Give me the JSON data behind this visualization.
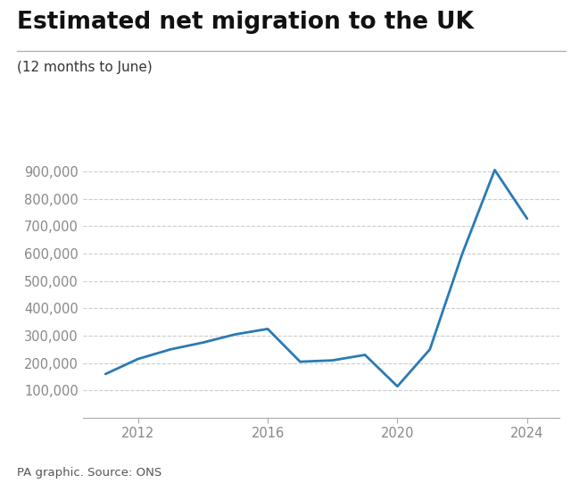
{
  "title": "Estimated net migration to the UK",
  "subtitle": "(12 months to June)",
  "source": "PA graphic. Source: ONS",
  "line_color": "#2a7ab5",
  "background_color": "#ffffff",
  "years": [
    2011,
    2012,
    2013,
    2014,
    2015,
    2016,
    2017,
    2018,
    2019,
    2020,
    2021,
    2022,
    2023,
    2024
  ],
  "values": [
    160000,
    215000,
    250000,
    275000,
    305000,
    325000,
    205000,
    210000,
    230000,
    115000,
    250000,
    600000,
    906000,
    728000
  ],
  "xlim": [
    2010.3,
    2025.0
  ],
  "ylim": [
    0,
    980000
  ],
  "yticks": [
    100000,
    200000,
    300000,
    400000,
    500000,
    600000,
    700000,
    800000,
    900000
  ],
  "xticks": [
    2012,
    2016,
    2020,
    2024
  ],
  "title_fontsize": 19,
  "subtitle_fontsize": 11,
  "tick_fontsize": 10.5,
  "source_fontsize": 9.5,
  "line_width": 2.0
}
